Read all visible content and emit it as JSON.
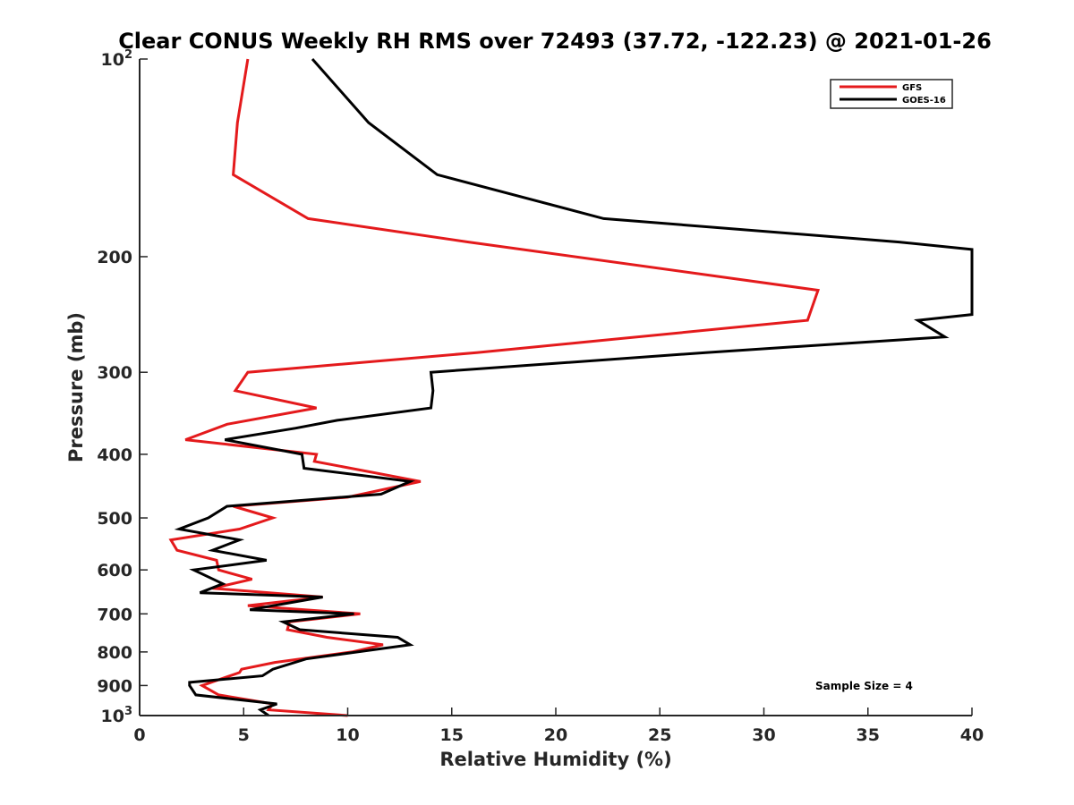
{
  "chart_data": {
    "type": "line",
    "title": "Clear CONUS Weekly RH RMS over 72493 (37.72, -122.23) @ 2021-01-26",
    "xlabel": "Relative Humidity (%)",
    "ylabel": "Pressure (mb)",
    "xlim": [
      0,
      40
    ],
    "ylim": [
      100,
      1000
    ],
    "y_scale": "log",
    "y_reversed": true,
    "grid": false,
    "x_ticks": [
      0,
      5,
      10,
      15,
      20,
      25,
      30,
      35,
      40
    ],
    "x_tick_labels": [
      "0",
      "5",
      "10",
      "15",
      "20",
      "25",
      "30",
      "35",
      "40"
    ],
    "y_ticks": [
      100,
      200,
      300,
      400,
      500,
      600,
      700,
      800,
      900,
      1000
    ],
    "y_tick_labels": [
      {
        "base": "10",
        "exp": "2"
      },
      {
        "base": "200",
        "exp": ""
      },
      {
        "base": "300",
        "exp": ""
      },
      {
        "base": "400",
        "exp": ""
      },
      {
        "base": "500",
        "exp": ""
      },
      {
        "base": "600",
        "exp": ""
      },
      {
        "base": "700",
        "exp": ""
      },
      {
        "base": "800",
        "exp": ""
      },
      {
        "base": "900",
        "exp": ""
      },
      {
        "base": "10",
        "exp": "3"
      }
    ],
    "legend_position": "top-right",
    "annotation": "Sample Size = 4",
    "series": [
      {
        "name": "GFS",
        "color": "#e41a1c",
        "points": [
          [
            5.2,
            100
          ],
          [
            4.7,
            125
          ],
          [
            4.5,
            150
          ],
          [
            8.1,
            175
          ],
          [
            15.8,
            190
          ],
          [
            32.6,
            225
          ],
          [
            32.1,
            250
          ],
          [
            16.2,
            280
          ],
          [
            5.2,
            300
          ],
          [
            4.6,
            320
          ],
          [
            8.5,
            340
          ],
          [
            4.2,
            360
          ],
          [
            2.2,
            380
          ],
          [
            8.5,
            400
          ],
          [
            8.4,
            410
          ],
          [
            13.5,
            440
          ],
          [
            10.0,
            465
          ],
          [
            4.5,
            480
          ],
          [
            6.4,
            500
          ],
          [
            4.8,
            520
          ],
          [
            1.5,
            540
          ],
          [
            1.8,
            560
          ],
          [
            3.7,
            580
          ],
          [
            3.8,
            600
          ],
          [
            5.4,
            620
          ],
          [
            3.5,
            640
          ],
          [
            8.8,
            660
          ],
          [
            5.2,
            680
          ],
          [
            10.6,
            700
          ],
          [
            7.2,
            720
          ],
          [
            7.1,
            740
          ],
          [
            9.0,
            760
          ],
          [
            11.7,
            780
          ],
          [
            10.2,
            800
          ],
          [
            6.5,
            830
          ],
          [
            4.9,
            850
          ],
          [
            4.8,
            860
          ],
          [
            3.0,
            900
          ],
          [
            3.8,
            930
          ],
          [
            6.4,
            960
          ],
          [
            6.2,
            980
          ],
          [
            10.0,
            1000
          ]
        ]
      },
      {
        "name": "GOES-16",
        "color": "#000000",
        "points": [
          [
            8.3,
            100
          ],
          [
            11.0,
            125
          ],
          [
            14.3,
            150
          ],
          [
            22.3,
            175
          ],
          [
            36.5,
            190
          ],
          [
            40.0,
            195
          ],
          [
            40.0,
            245
          ],
          [
            37.4,
            250
          ],
          [
            38.7,
            265
          ],
          [
            27.2,
            280
          ],
          [
            14.0,
            300
          ],
          [
            14.1,
            320
          ],
          [
            14.0,
            340
          ],
          [
            9.5,
            355
          ],
          [
            7.5,
            365
          ],
          [
            4.1,
            380
          ],
          [
            7.8,
            400
          ],
          [
            7.9,
            420
          ],
          [
            13.0,
            440
          ],
          [
            11.6,
            460
          ],
          [
            4.2,
            480
          ],
          [
            3.3,
            500
          ],
          [
            1.9,
            520
          ],
          [
            4.8,
            540
          ],
          [
            3.5,
            560
          ],
          [
            6.1,
            580
          ],
          [
            2.6,
            600
          ],
          [
            4.0,
            630
          ],
          [
            2.9,
            650
          ],
          [
            8.8,
            660
          ],
          [
            5.3,
            690
          ],
          [
            10.3,
            700
          ],
          [
            6.9,
            720
          ],
          [
            7.7,
            740
          ],
          [
            12.4,
            760
          ],
          [
            13.0,
            780
          ],
          [
            8.0,
            820
          ],
          [
            6.4,
            850
          ],
          [
            5.9,
            870
          ],
          [
            2.4,
            890
          ],
          [
            2.4,
            900
          ],
          [
            2.7,
            930
          ],
          [
            6.6,
            960
          ],
          [
            5.8,
            980
          ],
          [
            6.2,
            1000
          ]
        ]
      }
    ]
  }
}
